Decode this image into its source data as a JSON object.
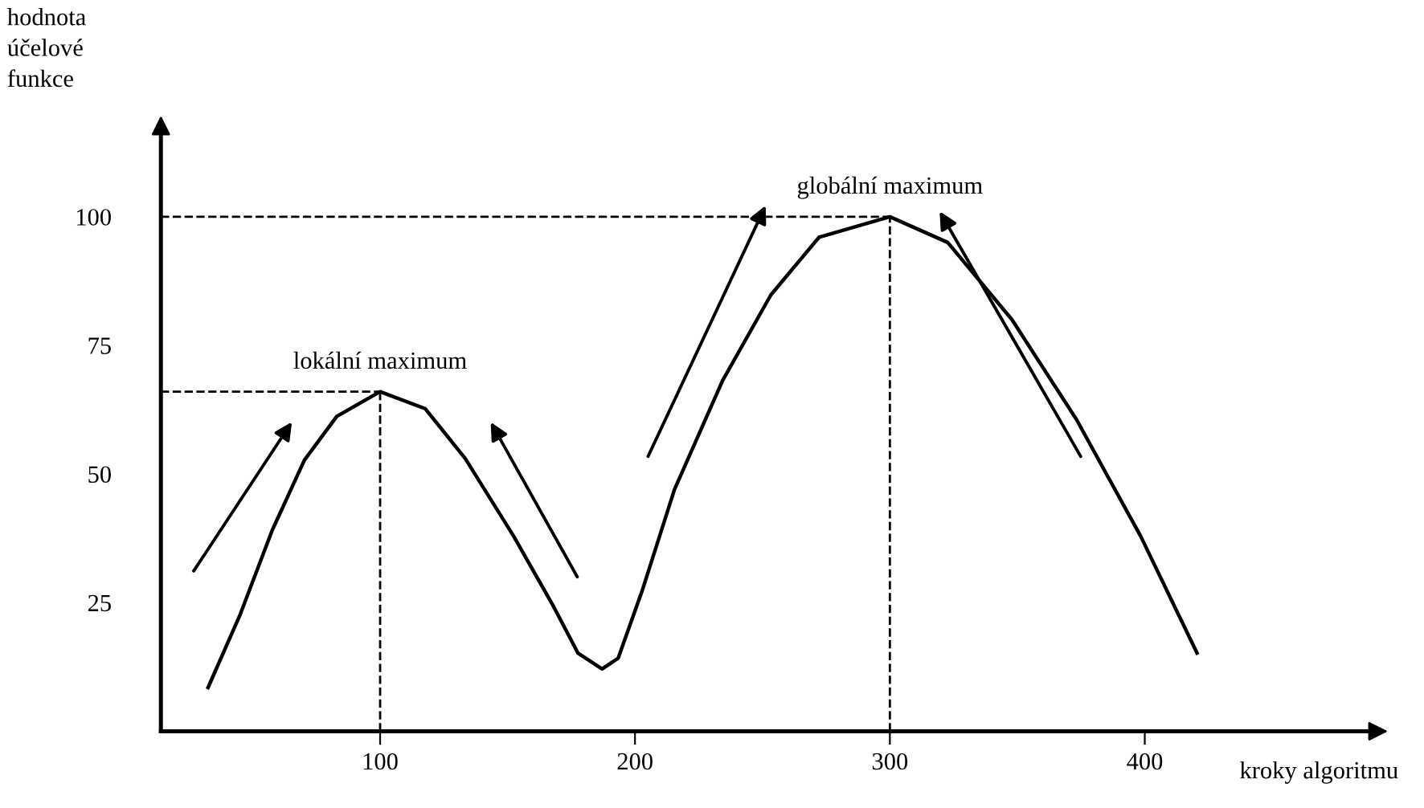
{
  "chart_data": {
    "type": "line",
    "xlabel": "kroky algoritmu",
    "ylabel": "hodnota\núčelové\nfunkce",
    "series": [
      {
        "color": "#000000",
        "x": [
          32.5,
          45.1,
          57.7,
          70.3,
          83.0,
          100,
          117.7,
          133.4,
          152.4,
          168.1,
          177.6,
          187.1,
          193.4,
          202.8,
          215.5,
          234.4,
          253.3,
          272.2,
          300,
          322.7,
          347.9,
          373.2,
          398.4,
          420.5
        ],
        "values": [
          8.5,
          22.7,
          39.1,
          52.7,
          61.2,
          66,
          62.7,
          53,
          37.9,
          24.2,
          15.2,
          12.1,
          14.2,
          27.3,
          47,
          68.2,
          84.8,
          96,
          100,
          95,
          80,
          60.6,
          37.9,
          15.2
        ]
      }
    ],
    "xlim": [
      14,
      490
    ],
    "ylim": [
      0,
      117
    ],
    "xticks": [
      100,
      200,
      300,
      400
    ],
    "yticks": [
      25,
      50,
      75,
      100
    ],
    "annotations": [
      {
        "text": "lokální maximum",
        "x": 100,
        "y": 66
      },
      {
        "text": "globální maximum",
        "x": 300,
        "y": 100
      }
    ],
    "legend": false,
    "marker": "none",
    "line_style": "solid"
  }
}
